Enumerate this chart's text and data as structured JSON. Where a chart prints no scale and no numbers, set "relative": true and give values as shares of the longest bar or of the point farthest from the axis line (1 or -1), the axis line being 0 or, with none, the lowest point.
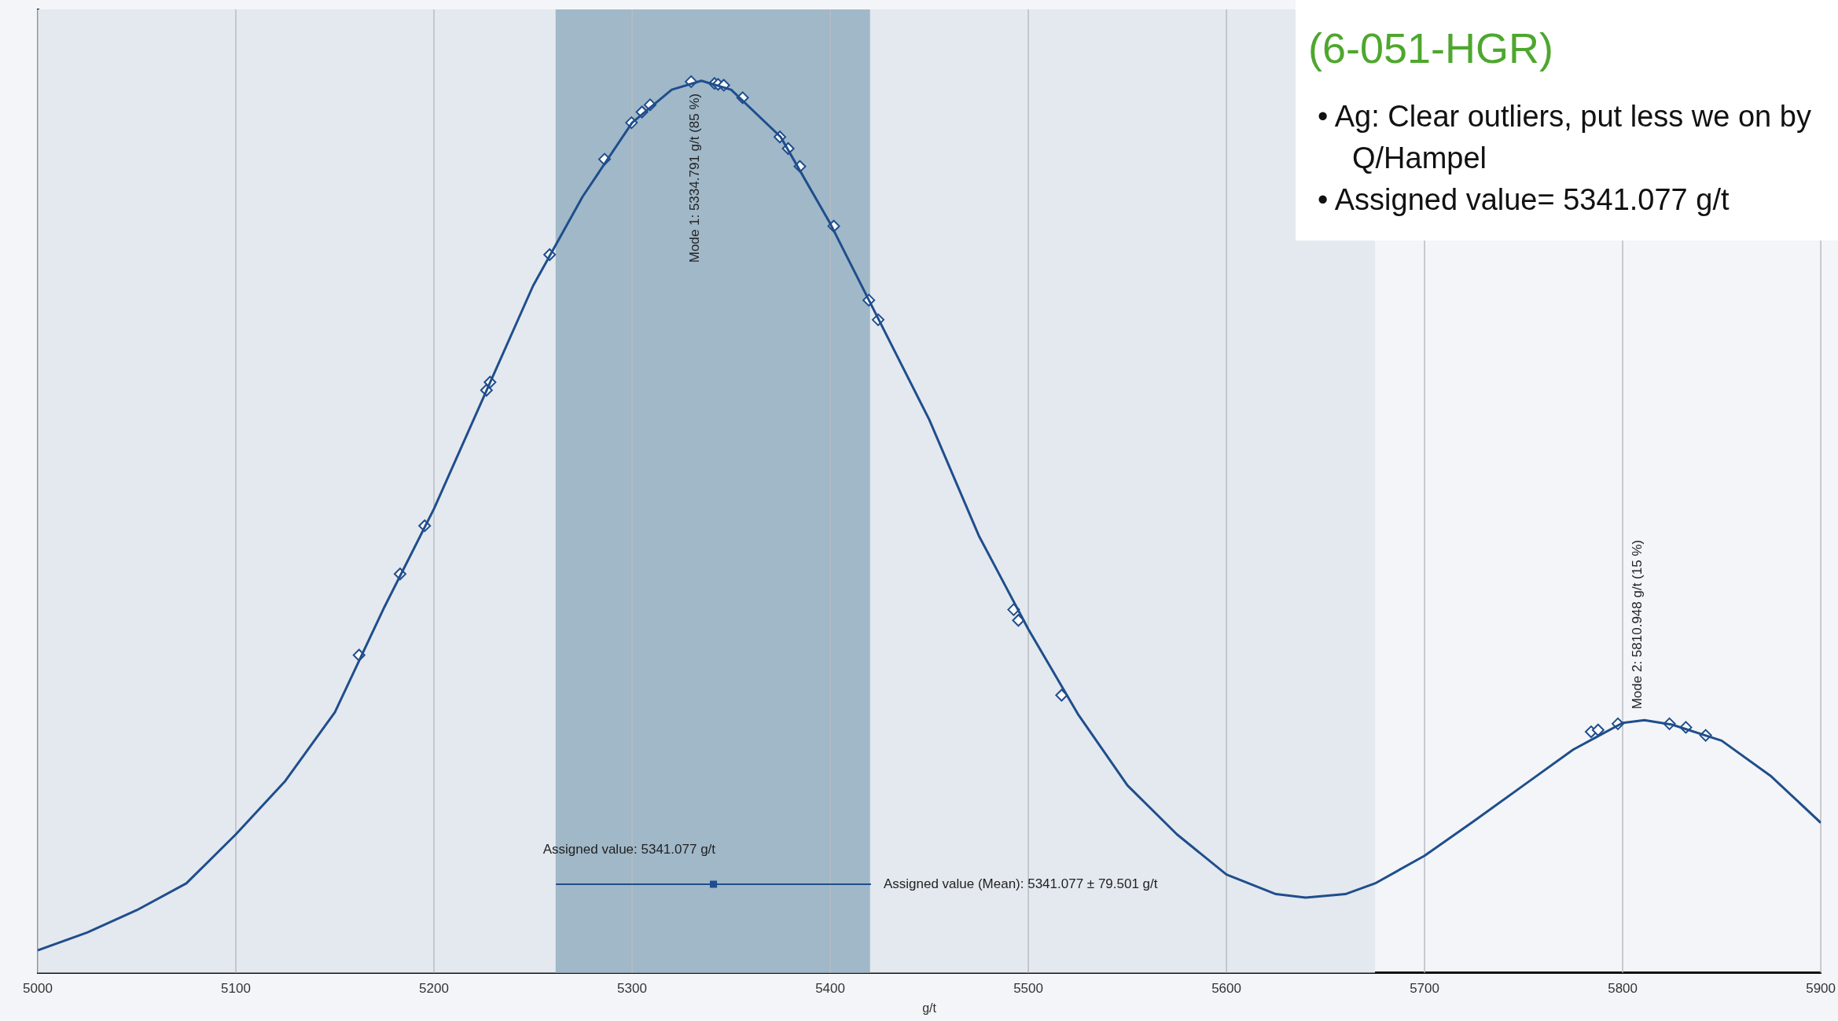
{
  "chart_data": {
    "type": "line",
    "title": "(6-051-HGR)",
    "xlabel": "g/t",
    "relative": true,
    "grid": "x",
    "legend": false,
    "xlim": [
      5000,
      5900
    ],
    "xticks": [
      5000,
      5100,
      5200,
      5300,
      5400,
      5500,
      5600,
      5700,
      5800,
      5900
    ],
    "bands": [
      {
        "axis": "x",
        "from": 5000,
        "to": 5675,
        "color": "#e4e9ef"
      },
      {
        "axis": "x",
        "from": 5261.4,
        "to": 5420.1,
        "color": "#a0b8c8"
      }
    ],
    "annotations": [
      {
        "text": "Mode 1: 5334.791 g/t (85 %)",
        "x": 5335,
        "y": 1
      },
      {
        "text": "Mode 2: 5810.948 g/t (15 %)",
        "x": 5811,
        "y": 0.283
      },
      {
        "text": "Assigned value: 5341.077 g/t",
        "x": 5341.077,
        "y": 0.099
      },
      {
        "text": "Assigned value (Mean): 5341.077 ± 79.501 g/t",
        "x": 5420.578,
        "y": 0.099
      },
      "•  Ag: Clear outliers, put less we on by Q/Hampel",
      "•  Assigned value=  5341.077 g/t"
    ],
    "series": [
      {
        "color": "#1f4e8c",
        "marker": "none",
        "line_style": "solid",
        "x": [
          5000,
          5025,
          5050,
          5075,
          5100,
          5125,
          5150,
          5175,
          5200,
          5225,
          5250,
          5275,
          5300,
          5320,
          5335,
          5350,
          5375,
          5400,
          5425,
          5450,
          5475,
          5500,
          5525,
          5550,
          5575,
          5600,
          5625,
          5640,
          5660,
          5675,
          5700,
          5725,
          5750,
          5775,
          5800,
          5811,
          5825,
          5850,
          5875,
          5900
        ],
        "values": [
          0.025,
          0.045,
          0.07,
          0.1,
          0.155,
          0.215,
          0.292,
          0.41,
          0.52,
          0.645,
          0.77,
          0.87,
          0.953,
          0.99,
          1,
          0.99,
          0.937,
          0.84,
          0.73,
          0.62,
          0.49,
          0.385,
          0.29,
          0.21,
          0.155,
          0.11,
          0.088,
          0.084,
          0.088,
          0.1,
          0.131,
          0.17,
          0.21,
          0.25,
          0.28,
          0.283,
          0.278,
          0.26,
          0.22,
          0.168
        ]
      },
      {
        "type": "scatter",
        "color": "#1f4e8c",
        "marker": "diamond",
        "x": [
          5162.2,
          5182.9,
          5195.3,
          5226.5,
          5228.3,
          5258.4,
          5286.1,
          5299.7,
          5305.0,
          5309.1,
          5329.8,
          5341.6,
          5343.4,
          5346.3,
          5355.8,
          5374.6,
          5378.8,
          5384.7,
          5401.8,
          5419.5,
          5424.2,
          5492.6,
          5495.0,
          5516.8,
          5784.1,
          5787.6,
          5797.6,
          5823.6,
          5831.9,
          5841.9
        ],
        "values": [
          0.356,
          0.447,
          0.501,
          0.653,
          0.662,
          0.805,
          0.912,
          0.953,
          0.965,
          0.973,
          0.999,
          0.997,
          0.996,
          0.995,
          0.981,
          0.937,
          0.924,
          0.904,
          0.837,
          0.754,
          0.732,
          0.407,
          0.395,
          0.311,
          0.27,
          0.272,
          0.279,
          0.279,
          0.275,
          0.266
        ]
      },
      {
        "type": "scatter",
        "color": "#1f4e8c",
        "marker": "square",
        "x": [
          5341.077
        ],
        "values": [
          0.099
        ],
        "xerrors": [
          79.501
        ]
      }
    ]
  }
}
